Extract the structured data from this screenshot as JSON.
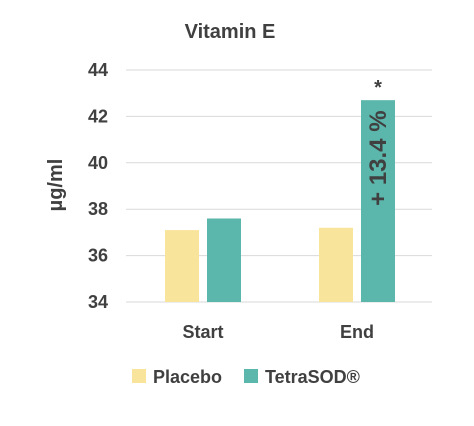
{
  "chart_data": {
    "type": "bar",
    "title": "Vitamin E",
    "ylabel": "µg/ml",
    "xlabel": "",
    "categories": [
      "Start",
      "End"
    ],
    "ylim": [
      34,
      44
    ],
    "yticks": [
      34,
      36,
      38,
      40,
      42,
      44
    ],
    "grid": true,
    "legend_position": "bottom",
    "series": [
      {
        "name": "Placebo",
        "values": [
          37.1,
          37.2
        ],
        "color": "#f9e49c"
      },
      {
        "name": "TetraSOD®",
        "values": [
          37.6,
          42.7
        ],
        "color": "#5bb6ab"
      }
    ],
    "annotations": [
      {
        "text": "+ 13.4 %",
        "category": "End",
        "series": "TetraSOD®",
        "placement": "inside-vertical"
      },
      {
        "text": "*",
        "category": "End",
        "series": "TetraSOD®",
        "placement": "above"
      }
    ]
  }
}
